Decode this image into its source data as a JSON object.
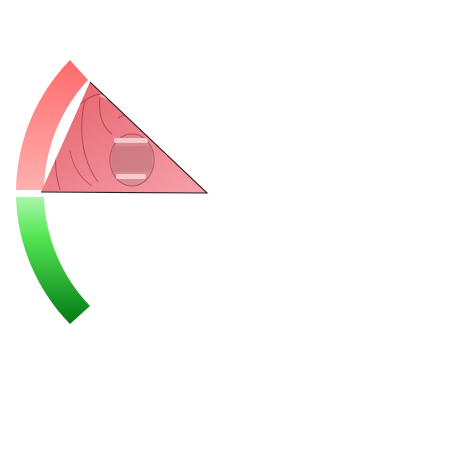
{
  "meter": {
    "upper_level": 1.0,
    "lower_level": 1.0,
    "upper_colors": [
      "#ff6b6b",
      "#ffb0b0"
    ],
    "lower_colors": [
      "#aaf5aa",
      "#55e855",
      "#007a14"
    ],
    "wedge_color": "#ee7078",
    "pointer_icon": "screaming-face-icon"
  }
}
